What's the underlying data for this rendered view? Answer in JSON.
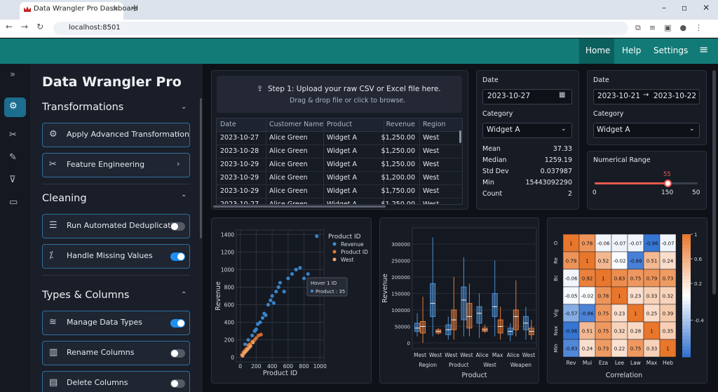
{
  "browser": {
    "tab_title": "Data Wrangler Pro Dashboard",
    "url": "localhost:8501"
  },
  "nav": [
    "Home",
    "Help",
    "Settings"
  ],
  "sidebar": {
    "title": "Data Wrangler Pro",
    "sections": [
      {
        "title": "Transformations",
        "items": [
          {
            "label": "Apply Advanced Transformation"
          },
          {
            "label": "Feature Engineering"
          }
        ]
      },
      {
        "title": "Cleaning",
        "items": [
          {
            "label": "Run Automated Deduplication",
            "toggle": false
          },
          {
            "label": "Handle Missing Values",
            "toggle": true
          }
        ]
      },
      {
        "title": "Types & Columns",
        "items": [
          {
            "label": "Manage Data Types",
            "toggle": true
          },
          {
            "label": "Rename Columns",
            "toggle": false
          },
          {
            "label": "Delete Columns",
            "toggle": false
          }
        ]
      }
    ]
  },
  "upload": {
    "title": "Step 1: Upload your raw CSV or Excel file here.",
    "subtitle": "Drag & drop file or click to browse."
  },
  "table": {
    "columns": [
      "Date",
      "Customer Name",
      "Product",
      "Revenue",
      "Region"
    ],
    "rows": [
      [
        "2023-10-27",
        "Alice Green",
        "Widget A",
        "$1,250.00",
        "West"
      ],
      [
        "2023-10-28",
        "Alice Green",
        "Widget A",
        "$1,250.00",
        "West"
      ],
      [
        "2023-10-29",
        "Alice Green",
        "Widget A",
        "$1,250.00",
        "West"
      ],
      [
        "2023-10-29",
        "Alice Green",
        "Widget A",
        "$1,200.00",
        "West"
      ],
      [
        "2023-10-29",
        "Alice Green",
        "Widget A",
        "$1,750.00",
        "West"
      ],
      [
        "2023-10-27",
        "Alice Green",
        "Widget A",
        "$1,250.00",
        "West"
      ]
    ]
  },
  "filter_left": {
    "date_label": "Date",
    "date": "2023-10-27",
    "category_label": "Category",
    "category": "Widget A",
    "stats": [
      {
        "label": "Mean",
        "value": 37.33
      },
      {
        "label": "Median",
        "value": 1259.19
      },
      {
        "label": "Std Dev",
        "value": 0.037987
      },
      {
        "label": "Min",
        "value": 15443092290
      },
      {
        "label": "Count",
        "value": 2
      }
    ]
  },
  "filter_right": {
    "date_label": "Date",
    "start": "2023-10-21",
    "end": "2023-10-22",
    "category_label": "Category",
    "category": "Widget A",
    "range_label": "Numerical Range",
    "slider": {
      "value": 55,
      "labels": [
        0,
        150,
        50
      ]
    }
  },
  "chart_data": [
    {
      "type": "scatter",
      "legend_title": "Product ID",
      "x_label": "Product ID",
      "y_label": "Revenue",
      "xlim": [
        -50,
        1050
      ],
      "ylim": [
        -50,
        1450
      ],
      "xticks": [
        0,
        200,
        400,
        600,
        800,
        1000
      ],
      "yticks": [
        0,
        200,
        400,
        600,
        800,
        1000,
        1200,
        1400
      ],
      "grid": true,
      "annotations": [
        "Hover 1 ID",
        "Product : 35"
      ],
      "series": [
        {
          "name": "Revenue",
          "color": "#3b8fd9",
          "x": [
            60,
            100,
            150,
            180,
            200,
            220,
            250,
            280,
            300,
            320,
            350,
            380,
            400,
            420,
            450,
            480,
            500,
            550,
            600,
            650,
            700,
            750,
            800,
            850,
            960
          ],
          "values": [
            150,
            200,
            250,
            300,
            320,
            380,
            400,
            450,
            500,
            480,
            600,
            650,
            700,
            620,
            750,
            800,
            850,
            750,
            900,
            950,
            1000,
            1020,
            900,
            950,
            1380
          ]
        },
        {
          "name": "Product ID",
          "color": "#e8762b",
          "x": [
            20,
            40,
            60,
            80,
            100,
            120,
            150,
            180,
            200,
            230,
            260
          ],
          "values": [
            30,
            60,
            80,
            100,
            140,
            150,
            180,
            200,
            220,
            250,
            260
          ]
        },
        {
          "name": "West",
          "color": "#f2a56b",
          "x": [
            30,
            50,
            70,
            90,
            110,
            130,
            160
          ],
          "values": [
            20,
            50,
            70,
            90,
            110,
            130,
            170
          ]
        }
      ]
    },
    {
      "type": "box",
      "x_label": "Product",
      "y_label": "Revenue",
      "categories": [
        "Mest",
        "West",
        "West",
        "West",
        "Alice",
        "Max",
        "Alice",
        "West"
      ],
      "groups": [
        "Region",
        "Product",
        "West",
        "Weapen"
      ],
      "ylim": [
        -17000,
        349000
      ],
      "yticks": [
        0,
        50000,
        100000,
        150000,
        200000,
        250000,
        300000
      ],
      "series": [
        {
          "color": "#4f8fcf",
          "boxes": [
            {
              "min": 20000,
              "q1": 35000,
              "median": 45000,
              "q3": 60000,
              "max": 90000
            },
            {
              "min": 20000,
              "q1": 80000,
              "median": 120000,
              "q3": 180000,
              "max": 320000
            },
            {
              "min": 10000,
              "q1": 25000,
              "median": 40000,
              "q3": 55000,
              "max": 80000
            },
            {
              "min": 20000,
              "q1": 70000,
              "median": 130000,
              "q3": 170000,
              "max": 260000
            },
            {
              "min": 15000,
              "q1": 60000,
              "median": 90000,
              "q3": 110000,
              "max": 150000
            },
            {
              "min": 20000,
              "q1": 80000,
              "median": 110000,
              "q3": 150000,
              "max": 250000
            },
            {
              "min": 5000,
              "q1": 25000,
              "median": 35000,
              "q3": 45000,
              "max": 60000
            },
            {
              "min": 10000,
              "q1": 40000,
              "median": 60000,
              "q3": 80000,
              "max": 110000
            }
          ]
        },
        {
          "color": "#e07b39",
          "boxes": [
            {
              "min": 0,
              "q1": 30000,
              "median": 50000,
              "q3": 65000,
              "max": 140000
            },
            {
              "min": 25000,
              "q1": 30000,
              "median": 35000,
              "q3": 40000,
              "max": 45000
            },
            {
              "min": 10000,
              "q1": 40000,
              "median": 70000,
              "q3": 100000,
              "max": 200000
            },
            {
              "min": 20000,
              "q1": 45000,
              "median": 80000,
              "q3": 120000,
              "max": 180000
            },
            {
              "min": 30000,
              "q1": 35000,
              "median": 40000,
              "q3": 45000,
              "max": 55000
            },
            {
              "min": 10000,
              "q1": 30000,
              "median": 50000,
              "q3": 70000,
              "max": 110000
            },
            {
              "min": 20000,
              "q1": 40000,
              "median": 80000,
              "q3": 100000,
              "max": 190000
            },
            {
              "min": 10000,
              "q1": 25000,
              "median": 35000,
              "q3": 45000,
              "max": 70000
            }
          ]
        }
      ]
    },
    {
      "type": "heatmap",
      "x_label": "Correlation",
      "rows": [
        "O",
        "Re",
        "Bc",
        null,
        "Vig",
        "Nax",
        "Min"
      ],
      "columns": [
        "Rev",
        "Mui",
        "Eza",
        "Lee",
        "Law",
        "Max",
        "Heb"
      ],
      "values": [
        [
          1,
          0.78,
          -0.06,
          -0.07,
          -0.07,
          -0.96,
          -0.07
        ],
        [
          0.79,
          1,
          0.52,
          -0.02,
          -0.88,
          0.51,
          0.24
        ],
        [
          -0.06,
          0.92,
          1,
          0.83,
          0.75,
          0.79,
          0.73
        ],
        [
          -0.05,
          -0.02,
          0.78,
          1,
          0.23,
          0.33,
          0.32
        ],
        [
          -0.57,
          -0.86,
          0.75,
          0.23,
          1,
          0.25,
          0.39
        ],
        [
          -0.96,
          0.51,
          0.75,
          0.32,
          0.28,
          1,
          0.35
        ],
        [
          -0.83,
          0.24,
          0.73,
          0.22,
          0.75,
          0.33,
          1
        ]
      ],
      "clim": [
        -1,
        1
      ],
      "cticks": [
        1,
        0.6,
        0.2,
        -0.4
      ],
      "colors": {
        "low": "#2f6fd0",
        "mid": "#ffffff",
        "high": "#e8762b"
      }
    }
  ]
}
